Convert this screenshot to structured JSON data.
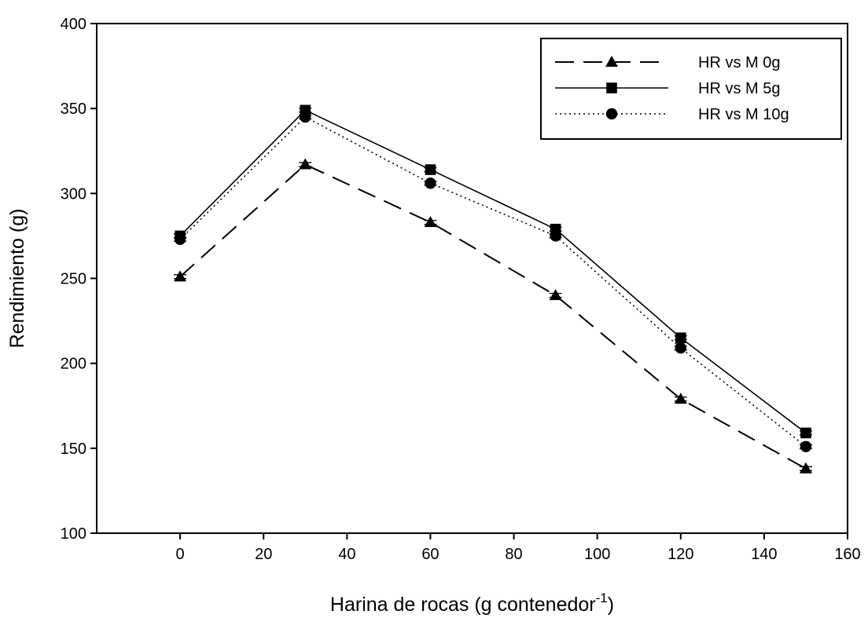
{
  "chart_data": {
    "type": "line",
    "xlabel": "Harina de rocas (g contenedor",
    "xlabel_sup": "-1",
    "xlabel_end": ")",
    "ylabel": "Rendimiento (g)",
    "xlim": [
      -20,
      160
    ],
    "ylim": [
      100,
      400
    ],
    "xticks": [
      0,
      20,
      40,
      60,
      80,
      100,
      120,
      140,
      160
    ],
    "yticks": [
      100,
      150,
      200,
      250,
      300,
      350,
      400
    ],
    "x": [
      0,
      30,
      60,
      90,
      120,
      150
    ],
    "grid": false,
    "legend_position": "top-right",
    "series": [
      {
        "name": "HR vs M 0g",
        "marker": "triangle",
        "dash": "dashed",
        "values": [
          251,
          317,
          283,
          240,
          179,
          138
        ]
      },
      {
        "name": "HR vs M 5g",
        "marker": "square",
        "dash": "solid",
        "values": [
          275,
          349,
          314,
          279,
          215,
          159
        ]
      },
      {
        "name": "HR vs M 10g",
        "marker": "circle",
        "dash": "dotted",
        "values": [
          273,
          345,
          306,
          275,
          209,
          151
        ]
      }
    ]
  }
}
